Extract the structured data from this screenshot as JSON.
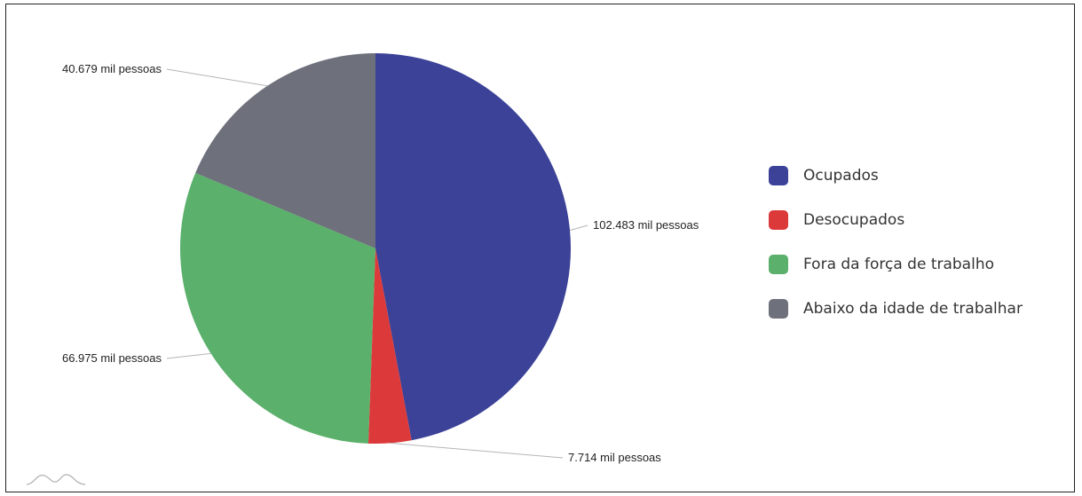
{
  "chart_data": {
    "type": "pie",
    "slices": [
      {
        "label": "Ocupados",
        "value": 102483,
        "display": "102.483 mil pessoas",
        "color": "#3b4297"
      },
      {
        "label": "Desocupados",
        "value": 7714,
        "display": "7.714 mil pessoas",
        "color": "#dc3a3a"
      },
      {
        "label": "Fora da força de trabalho",
        "value": 66975,
        "display": "66.975 mil pessoas",
        "color": "#5bb06b"
      },
      {
        "label": "Abaixo da idade de trabalhar",
        "value": 40679,
        "display": "40.679 mil pessoas",
        "color": "#6e717c"
      }
    ],
    "start_angle": "12 o'clock",
    "direction": "clockwise",
    "legend_position": "right"
  },
  "icons": {
    "logo": "mountain-logo-icon"
  }
}
